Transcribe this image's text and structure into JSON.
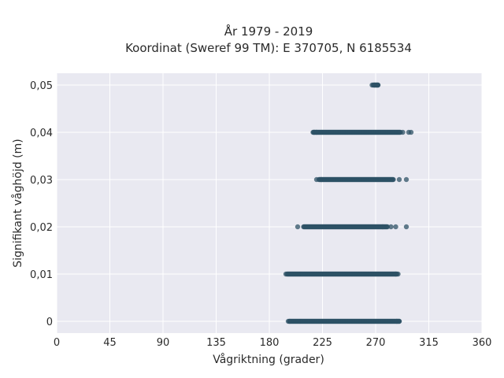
{
  "chart_data": {
    "type": "scatter",
    "title_line1": "År 1979 - 2019",
    "title_line2": "Koordinat (Sweref 99 TM): E 370705, N 6185534",
    "xlabel": "Vågriktning (grader)",
    "ylabel": "Signifikant våghöjd (m)",
    "xlim": [
      0,
      360
    ],
    "ylim": [
      -0.0025,
      0.0525
    ],
    "x_ticks": [
      0,
      45,
      90,
      135,
      180,
      225,
      270,
      315,
      360
    ],
    "y_ticks": [
      {
        "value": 0,
        "label": "0"
      },
      {
        "value": 0.01,
        "label": "0,01"
      },
      {
        "value": 0.02,
        "label": "0,02"
      },
      {
        "value": 0.03,
        "label": "0,03"
      },
      {
        "value": 0.04,
        "label": "0,04"
      },
      {
        "value": 0.05,
        "label": "0,05"
      }
    ],
    "grid": true,
    "point_color": "#2e5166",
    "plot_background": "#e9e9f1",
    "bands": [
      {
        "y": 0.0,
        "dense_x_range": [
          197,
          290
        ],
        "outliers_x": [
          196,
          197,
          288,
          290
        ]
      },
      {
        "y": 0.01,
        "dense_x_range": [
          195,
          288
        ],
        "outliers_x": [
          194,
          287,
          289
        ]
      },
      {
        "y": 0.02,
        "dense_x_range": [
          209,
          280
        ],
        "outliers_x": [
          204,
          276,
          283,
          287,
          296
        ]
      },
      {
        "y": 0.03,
        "dense_x_range": [
          222,
          285
        ],
        "outliers_x": [
          220,
          224,
          290,
          296
        ]
      },
      {
        "y": 0.04,
        "dense_x_range": [
          217,
          291
        ],
        "outliers_x": [
          218,
          220,
          293,
          298,
          300
        ]
      },
      {
        "y": 0.05,
        "dense_x_range": [
          268,
          272
        ],
        "outliers_x": [
          267,
          269,
          271,
          272
        ]
      }
    ]
  }
}
